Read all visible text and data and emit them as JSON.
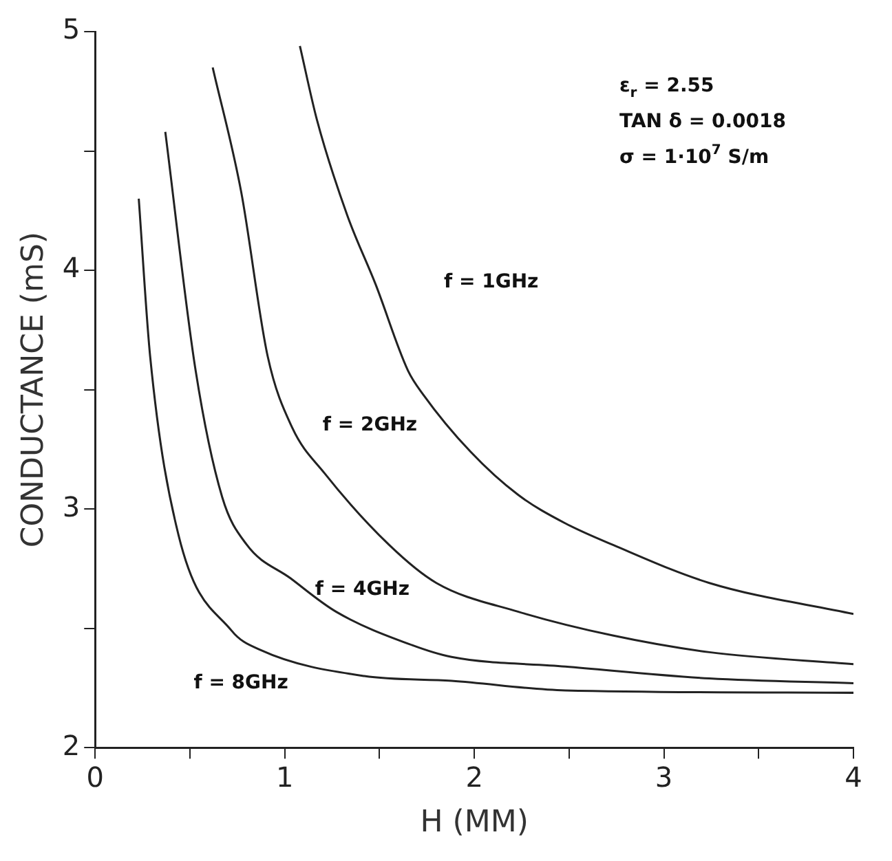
{
  "chart_data": {
    "type": "line",
    "xlabel": "H (MM)",
    "ylabel": "CONDUCTANCE (mS)",
    "xlim": [
      0,
      4
    ],
    "ylim": [
      2,
      5
    ],
    "xticks": [
      0,
      {
        "value": 0.5,
        "label": null
      },
      1,
      {
        "value": 1.5,
        "label": null
      },
      2,
      {
        "value": 2.5,
        "label": null
      },
      3,
      {
        "value": 3.5,
        "label": null
      },
      4
    ],
    "yticks": [
      2,
      {
        "value": 2.5,
        "label": null
      },
      3,
      {
        "value": 3.5,
        "label": null
      },
      4,
      {
        "value": 4.5,
        "label": null
      },
      5
    ],
    "grid": false,
    "legend": false,
    "marker": "none",
    "line_style": "solid",
    "series": [
      {
        "color": "#222222",
        "x": [
          1.08,
          1.17,
          1.33,
          1.48,
          1.65,
          1.73,
          1.98,
          2.23,
          2.48,
          2.73,
          3.24,
          4.0
        ],
        "values": [
          4.94,
          4.63,
          4.23,
          3.94,
          3.58,
          3.48,
          3.24,
          3.06,
          2.94,
          2.85,
          2.69,
          2.56
        ]
      },
      {
        "color": "#222222",
        "x": [
          0.62,
          0.77,
          0.91,
          1.04,
          1.21,
          1.55,
          1.8,
          2.23,
          2.73,
          3.24,
          4.0
        ],
        "values": [
          4.85,
          4.33,
          3.64,
          3.34,
          3.15,
          2.85,
          2.69,
          2.57,
          2.47,
          2.4,
          2.35
        ]
      },
      {
        "color": "#222222",
        "x": [
          0.37,
          0.53,
          0.67,
          0.8,
          1.03,
          1.27,
          1.67,
          1.88,
          2.48,
          3.24,
          4.0
        ],
        "values": [
          4.58,
          3.58,
          3.05,
          2.85,
          2.71,
          2.57,
          2.43,
          2.38,
          2.34,
          2.29,
          2.27
        ]
      },
      {
        "color": "#222222",
        "x": [
          0.23,
          0.29,
          0.44,
          0.72,
          0.87,
          1.42,
          1.88,
          2.48,
          4.0
        ],
        "values": [
          4.3,
          3.64,
          2.89,
          2.49,
          2.41,
          2.3,
          2.28,
          2.24,
          2.23
        ]
      }
    ],
    "annotations": [
      "f = 1GHz",
      "f = 2GHz",
      "f = 4GHz",
      "f = 8GHz",
      "ε$_{r}$ = 2.55",
      "TAN δ = 0.0018",
      "σ = 1·10$^{7}$ S/m"
    ]
  }
}
